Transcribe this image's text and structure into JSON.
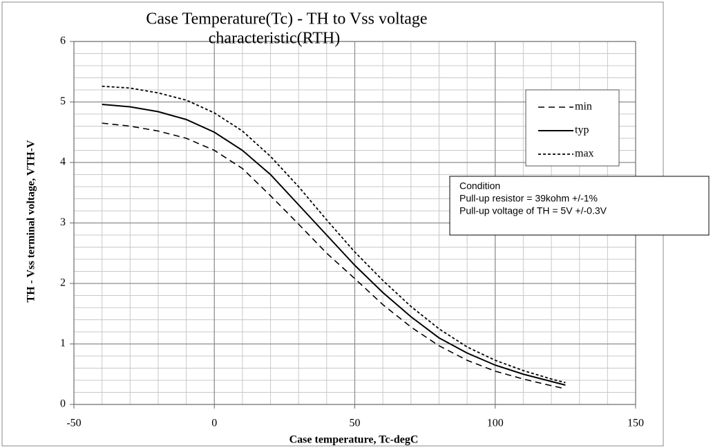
{
  "chart_data": {
    "type": "line",
    "title": [
      "Case Temperature(Tc) - TH to Vss voltage",
      "characteristic(RTH)"
    ],
    "xlabel": "Case temperature, Tc-degC",
    "ylabel": "TH - Vss terminal voltage, VTH-V",
    "x": [
      -40,
      -30,
      -20,
      -10,
      0,
      10,
      20,
      30,
      40,
      50,
      60,
      70,
      80,
      90,
      100,
      110,
      120,
      125
    ],
    "series": [
      {
        "name": "min",
        "color": "#000000",
        "dash": "9,6",
        "width": 1.6,
        "values": [
          4.65,
          4.6,
          4.52,
          4.4,
          4.2,
          3.9,
          3.45,
          2.98,
          2.5,
          2.08,
          1.65,
          1.28,
          0.97,
          0.73,
          0.55,
          0.42,
          0.31,
          0.26
        ]
      },
      {
        "name": "typ",
        "color": "#000000",
        "dash": "none",
        "width": 2,
        "values": [
          4.96,
          4.92,
          4.84,
          4.71,
          4.5,
          4.2,
          3.8,
          3.3,
          2.8,
          2.3,
          1.85,
          1.45,
          1.1,
          0.85,
          0.65,
          0.5,
          0.38,
          0.32
        ]
      },
      {
        "name": "max",
        "color": "#000000",
        "dash": "4,3",
        "width": 1.8,
        "values": [
          5.26,
          5.23,
          5.15,
          5.03,
          4.82,
          4.52,
          4.1,
          3.6,
          3.05,
          2.52,
          2.05,
          1.62,
          1.25,
          0.95,
          0.73,
          0.56,
          0.42,
          0.36
        ]
      }
    ],
    "xlim": [
      -50,
      150
    ],
    "xticks": [
      -50,
      0,
      50,
      100,
      150
    ],
    "ylim": [
      0,
      6
    ],
    "yticks": [
      0,
      1,
      2,
      3,
      4,
      5,
      6
    ],
    "grid": true,
    "minor_grid": {
      "x": 10,
      "y": 0.2
    },
    "legend": "upper right",
    "annotation": [
      "Condition",
      "Pull-up resistor = 39kohm +/-1%",
      "Pull-up voltage of TH = 5V +/-0.3V"
    ]
  }
}
